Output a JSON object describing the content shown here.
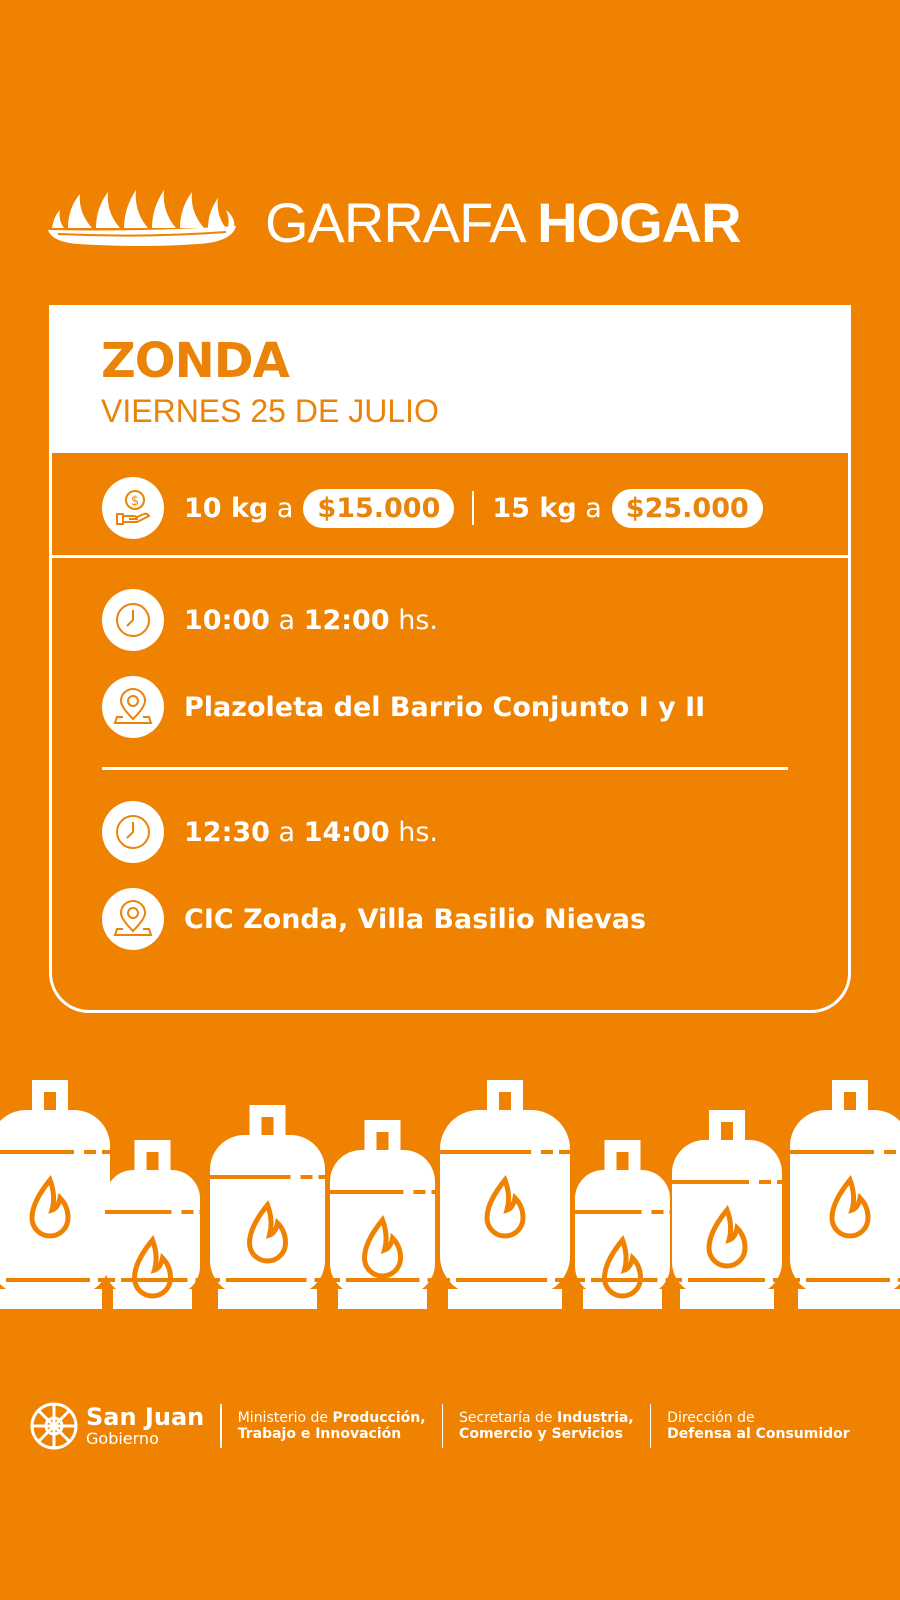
{
  "header": {
    "title_light": "GARRAFA",
    "title_bold": "HOGAR",
    "logo_icon": "flames-crown-icon"
  },
  "card": {
    "town": "ZONDA",
    "date": "VIERNES 25 DE JULIO",
    "prices": [
      {
        "weight": "10 kg",
        "connector": "a",
        "price": "$15.000"
      },
      {
        "weight": "15 kg",
        "connector": "a",
        "price": "$25.000"
      }
    ],
    "slots": [
      {
        "start": "10:00",
        "connector": "a",
        "end": "12:00",
        "suffix": "hs.",
        "location": "Plazoleta del Barrio Conjunto I y II"
      },
      {
        "start": "12:30",
        "connector": "a",
        "end": "14:00",
        "suffix": "hs.",
        "location": "CIC Zonda, Villa Basilio Nievas"
      }
    ]
  },
  "footer": {
    "brand": "San Juan",
    "brand_sub": "Gobierno",
    "orgs": [
      {
        "line1_light": "Ministerio de ",
        "line1_bold": "Producción,",
        "line2": "Trabajo e Innovación"
      },
      {
        "line1_light": "Secretaría de ",
        "line1_bold": "Industria,",
        "line2": "Comercio y Servicios"
      },
      {
        "line1_light": "Dirección de",
        "line1_bold": "",
        "line2": "Defensa al Consumidor"
      }
    ]
  },
  "colors": {
    "background": "#EF8200",
    "accent_text": "#EA830A",
    "white": "#FFFFFF"
  }
}
